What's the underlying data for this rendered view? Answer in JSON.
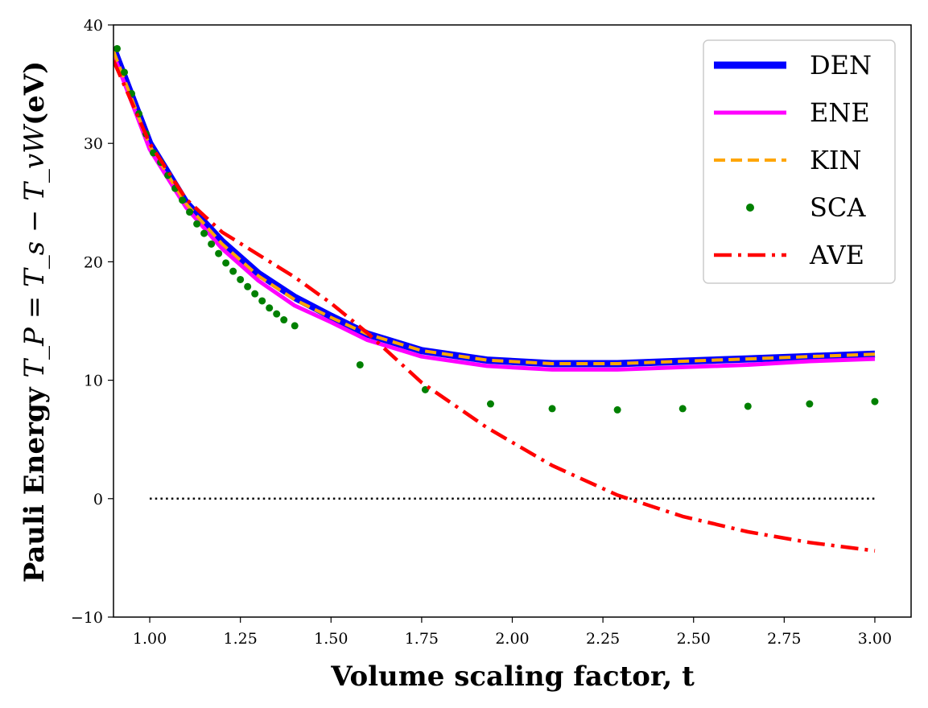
{
  "chart_data": {
    "type": "line",
    "xlabel": "Volume scaling factor, t",
    "ylabel": {
      "prefix": "Pauli Energy ",
      "math": "T_P = T_s − T_vW",
      "suffix": "(eV)"
    },
    "xlim": [
      0.9,
      3.1
    ],
    "ylim": [
      -10,
      40
    ],
    "x_ticks": [
      1.0,
      1.25,
      1.5,
      1.75,
      2.0,
      2.25,
      2.5,
      2.75,
      3.0
    ],
    "x_tick_labels": [
      "1.00",
      "1.25",
      "1.50",
      "1.75",
      "2.00",
      "2.25",
      "2.50",
      "2.75",
      "3.00"
    ],
    "y_ticks": [
      -10,
      0,
      10,
      20,
      30,
      40
    ],
    "y_tick_labels": [
      "−10",
      "0",
      "10",
      "20",
      "30",
      "40"
    ],
    "grid": false,
    "legend_position": "top-right",
    "reference_line": {
      "y": 0,
      "x": [
        1.0,
        3.0
      ],
      "style": "dotted",
      "color": "#000000"
    },
    "series": [
      {
        "name": "DEN",
        "color": "#0000ff",
        "style": "solid-thick",
        "x": [
          0.9,
          1.0,
          1.1,
          1.2,
          1.3,
          1.4,
          1.5,
          1.6,
          1.75,
          1.93,
          2.11,
          2.29,
          2.47,
          2.65,
          2.82,
          3.0
        ],
        "y": [
          38.0,
          30.0,
          25.0,
          21.7,
          19.0,
          17.0,
          15.4,
          13.9,
          12.5,
          11.7,
          11.4,
          11.4,
          11.6,
          11.8,
          12.0,
          12.2
        ]
      },
      {
        "name": "ENE",
        "color": "#ff00ff",
        "style": "solid",
        "x": [
          0.9,
          1.0,
          1.1,
          1.2,
          1.3,
          1.4,
          1.5,
          1.6,
          1.75,
          1.93,
          2.11,
          2.29,
          2.47,
          2.65,
          2.82,
          3.0
        ],
        "y": [
          37.5,
          29.5,
          24.6,
          21.1,
          18.4,
          16.3,
          14.9,
          13.4,
          12.0,
          11.2,
          10.9,
          10.9,
          11.1,
          11.3,
          11.6,
          11.8
        ]
      },
      {
        "name": "KIN",
        "color": "#ffa500",
        "style": "dashed",
        "x": [
          0.9,
          1.0,
          1.1,
          1.2,
          1.3,
          1.4,
          1.5,
          1.6,
          1.75,
          1.93,
          2.11,
          2.29,
          2.47,
          2.65,
          2.82,
          3.0
        ],
        "y": [
          37.8,
          29.8,
          24.9,
          21.5,
          18.8,
          16.8,
          15.3,
          13.9,
          12.5,
          11.7,
          11.4,
          11.4,
          11.6,
          11.8,
          12.0,
          12.2
        ]
      },
      {
        "name": "SCA",
        "color": "#008000",
        "style": "points",
        "x": [
          0.91,
          0.93,
          0.95,
          0.97,
          0.99,
          1.01,
          1.03,
          1.05,
          1.07,
          1.09,
          1.11,
          1.13,
          1.15,
          1.17,
          1.19,
          1.21,
          1.23,
          1.25,
          1.27,
          1.29,
          1.31,
          1.33,
          1.35,
          1.37,
          1.4,
          1.58,
          1.76,
          1.94,
          2.11,
          2.29,
          2.47,
          2.65,
          2.82,
          3.0
        ],
        "y": [
          38.0,
          36.0,
          34.2,
          32.5,
          30.8,
          29.2,
          28.4,
          27.3,
          26.2,
          25.2,
          24.2,
          23.2,
          22.4,
          21.5,
          20.7,
          19.9,
          19.2,
          18.5,
          17.9,
          17.3,
          16.7,
          16.1,
          15.6,
          15.1,
          14.6,
          11.3,
          9.2,
          8.0,
          7.6,
          7.5,
          7.6,
          7.8,
          8.0,
          8.2
        ]
      },
      {
        "name": "AVE",
        "color": "#ff0000",
        "style": "dashdot",
        "x": [
          0.9,
          1.0,
          1.1,
          1.2,
          1.3,
          1.4,
          1.5,
          1.6,
          1.75,
          1.93,
          2.11,
          2.29,
          2.47,
          2.65,
          2.82,
          3.0
        ],
        "y": [
          37.0,
          30.0,
          25.3,
          22.5,
          20.6,
          18.7,
          16.5,
          14.0,
          9.8,
          6.0,
          2.8,
          0.3,
          -1.5,
          -2.8,
          -3.7,
          -4.4
        ]
      }
    ]
  }
}
